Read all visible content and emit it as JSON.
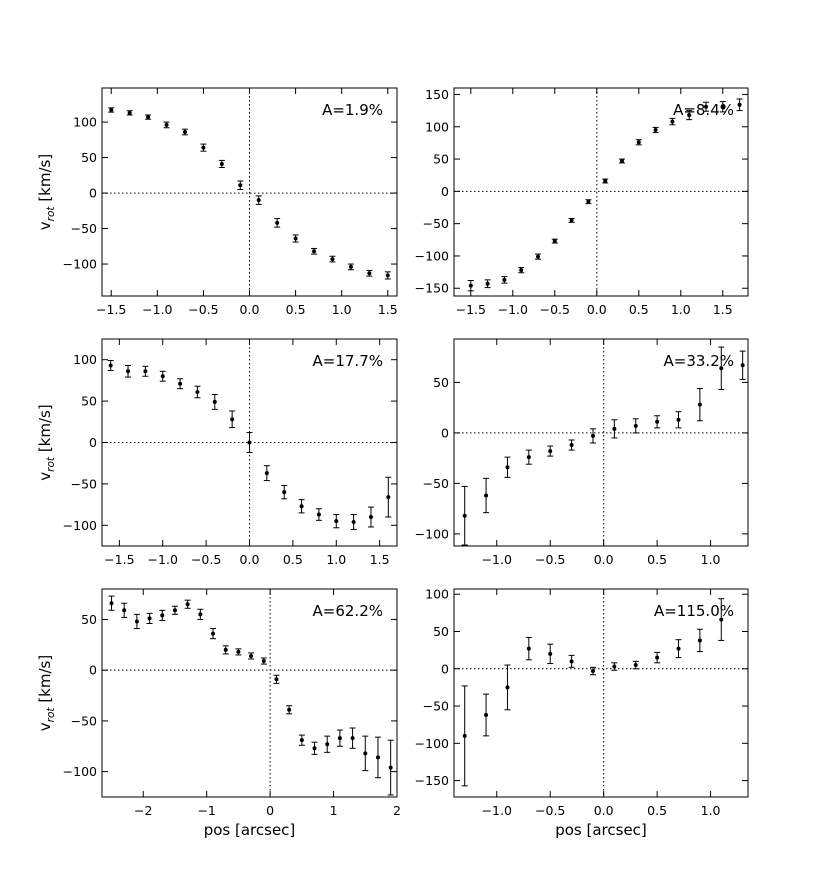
{
  "chart_data": [
    {
      "type": "scatter",
      "annotation": "A=1.9%",
      "ylabel": "v_rot [km/s]",
      "xlabel": "",
      "xlim": [
        -1.6,
        1.6
      ],
      "ylim": [
        -145,
        148
      ],
      "xticks": [
        -1.5,
        -1.0,
        -0.5,
        0.0,
        0.5,
        1.0,
        1.5
      ],
      "xtick_labels": [
        "−1.5",
        "−1.0",
        "−0.5",
        "0.0",
        "0.5",
        "1.0",
        "1.5"
      ],
      "yticks": [
        -100,
        -50,
        0,
        50,
        100
      ],
      "ytick_labels": [
        "−100",
        "−50",
        "0",
        "50",
        "100"
      ],
      "points": [
        {
          "x": -1.5,
          "y": 117,
          "err": 3
        },
        {
          "x": -1.3,
          "y": 113,
          "err": 3
        },
        {
          "x": -1.1,
          "y": 107,
          "err": 3
        },
        {
          "x": -0.9,
          "y": 96,
          "err": 4
        },
        {
          "x": -0.7,
          "y": 86,
          "err": 4
        },
        {
          "x": -0.5,
          "y": 64,
          "err": 5
        },
        {
          "x": -0.3,
          "y": 41,
          "err": 5
        },
        {
          "x": -0.1,
          "y": 11,
          "err": 6
        },
        {
          "x": 0.1,
          "y": -10,
          "err": 6
        },
        {
          "x": 0.3,
          "y": -42,
          "err": 6
        },
        {
          "x": 0.5,
          "y": -64,
          "err": 5
        },
        {
          "x": 0.7,
          "y": -82,
          "err": 4
        },
        {
          "x": 0.9,
          "y": -93,
          "err": 4
        },
        {
          "x": 1.1,
          "y": -104,
          "err": 4
        },
        {
          "x": 1.3,
          "y": -113,
          "err": 4
        },
        {
          "x": 1.5,
          "y": -116,
          "err": 5
        }
      ]
    },
    {
      "type": "scatter",
      "annotation": "A=8.4%",
      "ylabel": "",
      "xlabel": "",
      "xlim": [
        -1.7,
        1.8
      ],
      "ylim": [
        -162,
        160
      ],
      "xticks": [
        -1.5,
        -1.0,
        -0.5,
        0.0,
        0.5,
        1.0,
        1.5
      ],
      "xtick_labels": [
        "−1.5",
        "−1.0",
        "−0.5",
        "0.0",
        "0.5",
        "1.0",
        "1.5"
      ],
      "yticks": [
        -150,
        -100,
        -50,
        0,
        50,
        100,
        150
      ],
      "ytick_labels": [
        "−150",
        "−100",
        "−50",
        "0",
        "50",
        "100",
        "150"
      ],
      "points": [
        {
          "x": -1.5,
          "y": -146,
          "err": 8
        },
        {
          "x": -1.3,
          "y": -143,
          "err": 6
        },
        {
          "x": -1.1,
          "y": -137,
          "err": 5
        },
        {
          "x": -0.9,
          "y": -122,
          "err": 4
        },
        {
          "x": -0.7,
          "y": -101,
          "err": 4
        },
        {
          "x": -0.5,
          "y": -77,
          "err": 3
        },
        {
          "x": -0.3,
          "y": -45,
          "err": 3
        },
        {
          "x": -0.1,
          "y": -16,
          "err": 3
        },
        {
          "x": 0.1,
          "y": 16,
          "err": 3
        },
        {
          "x": 0.3,
          "y": 47,
          "err": 3
        },
        {
          "x": 0.5,
          "y": 76,
          "err": 4
        },
        {
          "x": 0.7,
          "y": 95,
          "err": 4
        },
        {
          "x": 0.9,
          "y": 108,
          "err": 5
        },
        {
          "x": 1.1,
          "y": 118,
          "err": 7
        },
        {
          "x": 1.3,
          "y": 131,
          "err": 7
        },
        {
          "x": 1.5,
          "y": 131,
          "err": 8
        },
        {
          "x": 1.7,
          "y": 134,
          "err": 9
        }
      ]
    },
    {
      "type": "scatter",
      "annotation": "A=17.7%",
      "ylabel": "v_rot [km/s]",
      "xlabel": "",
      "xlim": [
        -1.7,
        1.7
      ],
      "ylim": [
        -125,
        125
      ],
      "xticks": [
        -1.5,
        -1.0,
        -0.5,
        0.0,
        0.5,
        1.0,
        1.5
      ],
      "xtick_labels": [
        "−1.5",
        "−1.0",
        "−0.5",
        "0.0",
        "0.5",
        "1.0",
        "1.5"
      ],
      "yticks": [
        -100,
        -50,
        0,
        50,
        100
      ],
      "ytick_labels": [
        "−100",
        "−50",
        "0",
        "50",
        "100"
      ],
      "points": [
        {
          "x": -1.6,
          "y": 93,
          "err": 6
        },
        {
          "x": -1.4,
          "y": 86,
          "err": 7
        },
        {
          "x": -1.2,
          "y": 86,
          "err": 6
        },
        {
          "x": -1.0,
          "y": 80,
          "err": 6
        },
        {
          "x": -0.8,
          "y": 71,
          "err": 6
        },
        {
          "x": -0.6,
          "y": 61,
          "err": 7
        },
        {
          "x": -0.4,
          "y": 49,
          "err": 9
        },
        {
          "x": -0.2,
          "y": 28,
          "err": 10
        },
        {
          "x": 0.0,
          "y": 0,
          "err": 12
        },
        {
          "x": 0.2,
          "y": -37,
          "err": 9
        },
        {
          "x": 0.4,
          "y": -60,
          "err": 8
        },
        {
          "x": 0.6,
          "y": -77,
          "err": 8
        },
        {
          "x": 0.8,
          "y": -87,
          "err": 7
        },
        {
          "x": 1.0,
          "y": -95,
          "err": 8
        },
        {
          "x": 1.2,
          "y": -96,
          "err": 9
        },
        {
          "x": 1.4,
          "y": -90,
          "err": 12
        },
        {
          "x": 1.6,
          "y": -66,
          "err": 24
        }
      ]
    },
    {
      "type": "scatter",
      "annotation": "A=33.2%",
      "ylabel": "",
      "xlabel": "",
      "xlim": [
        -1.4,
        1.35
      ],
      "ylim": [
        -112,
        93
      ],
      "xticks": [
        -1.0,
        -0.5,
        0.0,
        0.5,
        1.0
      ],
      "xtick_labels": [
        "−1.0",
        "−0.5",
        "0.0",
        "0.5",
        "1.0"
      ],
      "yticks": [
        -100,
        -50,
        0,
        50
      ],
      "ytick_labels": [
        "−100",
        "−50",
        "0",
        "50"
      ],
      "points": [
        {
          "x": -1.3,
          "y": -82,
          "err": 29
        },
        {
          "x": -1.1,
          "y": -62,
          "err": 17
        },
        {
          "x": -0.9,
          "y": -34,
          "err": 10
        },
        {
          "x": -0.7,
          "y": -24,
          "err": 7
        },
        {
          "x": -0.5,
          "y": -18,
          "err": 5
        },
        {
          "x": -0.3,
          "y": -12,
          "err": 5
        },
        {
          "x": -0.1,
          "y": -3,
          "err": 7
        },
        {
          "x": 0.1,
          "y": 4,
          "err": 9
        },
        {
          "x": 0.3,
          "y": 7,
          "err": 7
        },
        {
          "x": 0.5,
          "y": 11,
          "err": 6
        },
        {
          "x": 0.7,
          "y": 13,
          "err": 8
        },
        {
          "x": 0.9,
          "y": 28,
          "err": 16
        },
        {
          "x": 1.1,
          "y": 64,
          "err": 21
        },
        {
          "x": 1.3,
          "y": 67,
          "err": 14
        }
      ]
    },
    {
      "type": "scatter",
      "annotation": "A=62.2%",
      "ylabel": "v_rot [km/s]",
      "xlabel": "pos [arcsec]",
      "xlim": [
        -2.65,
        2.0
      ],
      "ylim": [
        -125,
        80
      ],
      "xticks": [
        -2,
        -1,
        0,
        1,
        2
      ],
      "xtick_labels": [
        "−2",
        "−1",
        "0",
        "1",
        "2"
      ],
      "yticks": [
        -100,
        -50,
        0,
        50
      ],
      "ytick_labels": [
        "−100",
        "−50",
        "0",
        "50"
      ],
      "points": [
        {
          "x": -2.5,
          "y": 66,
          "err": 7
        },
        {
          "x": -2.3,
          "y": 59,
          "err": 7
        },
        {
          "x": -2.1,
          "y": 48,
          "err": 7
        },
        {
          "x": -1.9,
          "y": 51,
          "err": 5
        },
        {
          "x": -1.7,
          "y": 54,
          "err": 5
        },
        {
          "x": -1.5,
          "y": 59,
          "err": 4
        },
        {
          "x": -1.3,
          "y": 65,
          "err": 4
        },
        {
          "x": -1.1,
          "y": 55,
          "err": 5
        },
        {
          "x": -0.9,
          "y": 36,
          "err": 5
        },
        {
          "x": -0.7,
          "y": 20,
          "err": 4
        },
        {
          "x": -0.5,
          "y": 18,
          "err": 3
        },
        {
          "x": -0.3,
          "y": 14,
          "err": 3
        },
        {
          "x": -0.1,
          "y": 9,
          "err": 3
        },
        {
          "x": 0.1,
          "y": -9,
          "err": 4
        },
        {
          "x": 0.3,
          "y": -39,
          "err": 4
        },
        {
          "x": 0.5,
          "y": -69,
          "err": 5
        },
        {
          "x": 0.7,
          "y": -77,
          "err": 6
        },
        {
          "x": 0.9,
          "y": -73,
          "err": 8
        },
        {
          "x": 1.1,
          "y": -67,
          "err": 8
        },
        {
          "x": 1.3,
          "y": -67,
          "err": 10
        },
        {
          "x": 1.5,
          "y": -82,
          "err": 17
        },
        {
          "x": 1.7,
          "y": -86,
          "err": 20
        },
        {
          "x": 1.9,
          "y": -96,
          "err": 27
        }
      ]
    },
    {
      "type": "scatter",
      "annotation": "A=115.0%",
      "ylabel": "",
      "xlabel": "pos [arcsec]",
      "xlim": [
        -1.4,
        1.35
      ],
      "ylim": [
        -172,
        107
      ],
      "xticks": [
        -1.0,
        -0.5,
        0.0,
        0.5,
        1.0
      ],
      "xtick_labels": [
        "−1.0",
        "−0.5",
        "0.0",
        "0.5",
        "1.0"
      ],
      "yticks": [
        -150,
        -100,
        -50,
        0,
        50,
        100
      ],
      "ytick_labels": [
        "−150",
        "−100",
        "−50",
        "0",
        "50",
        "100"
      ],
      "points": [
        {
          "x": -1.3,
          "y": -90,
          "err": 67
        },
        {
          "x": -1.1,
          "y": -62,
          "err": 28
        },
        {
          "x": -0.9,
          "y": -25,
          "err": 30
        },
        {
          "x": -0.7,
          "y": 27,
          "err": 15
        },
        {
          "x": -0.5,
          "y": 20,
          "err": 13
        },
        {
          "x": -0.3,
          "y": 10,
          "err": 8
        },
        {
          "x": -0.1,
          "y": -3,
          "err": 5
        },
        {
          "x": 0.1,
          "y": 3,
          "err": 5
        },
        {
          "x": 0.3,
          "y": 5,
          "err": 5
        },
        {
          "x": 0.5,
          "y": 15,
          "err": 7
        },
        {
          "x": 0.7,
          "y": 27,
          "err": 12
        },
        {
          "x": 0.9,
          "y": 38,
          "err": 15
        },
        {
          "x": 1.1,
          "y": 66,
          "err": 28
        }
      ]
    }
  ]
}
